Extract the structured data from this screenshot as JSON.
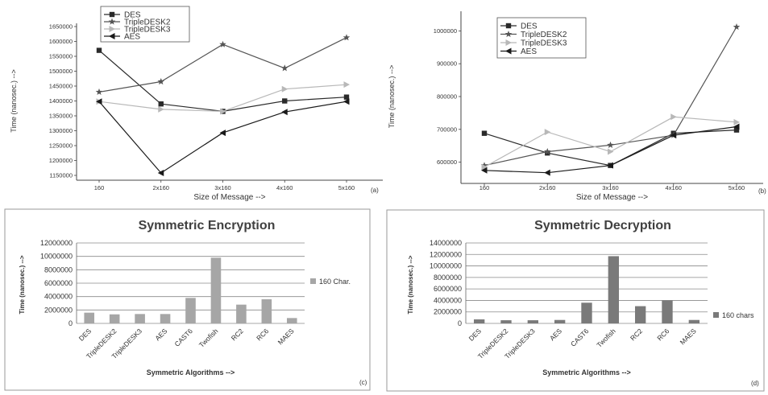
{
  "chart_data": [
    {
      "type": "line",
      "panel_label": "(a)",
      "xlabel": "Size of Message -->",
      "ylabel": "Time (nanosec.) -->",
      "categories": [
        "160",
        "2x160",
        "3x160",
        "4x160",
        "5x160"
      ],
      "ylim": [
        1150000,
        1650000
      ],
      "yticks": [
        "1150000",
        "1200000",
        "1250000",
        "1300000",
        "1350000",
        "1400000",
        "1450000",
        "1500000",
        "1550000",
        "1600000",
        "1650000"
      ],
      "legend_position": "top-center",
      "series": [
        {
          "name": "DES",
          "marker": "square",
          "color": "#2a2a2a",
          "values": [
            1570000,
            1390000,
            1365000,
            1400000,
            1413000
          ]
        },
        {
          "name": "TripleDESK2",
          "marker": "star",
          "color": "#555555",
          "values": [
            1430000,
            1465000,
            1590000,
            1510000,
            1613000
          ]
        },
        {
          "name": "TripleDESK3",
          "marker": "triangle-right",
          "color": "#b8b8b8",
          "values": [
            1398000,
            1372000,
            1365000,
            1440000,
            1455000
          ]
        },
        {
          "name": "AES",
          "marker": "triangle-left",
          "color": "#1a1a1a",
          "values": [
            1398000,
            1158000,
            1293000,
            1363000,
            1398000
          ]
        }
      ]
    },
    {
      "type": "line",
      "panel_label": "(b)",
      "xlabel": "Size of Message -->",
      "ylabel": "Time (nanosec.) -->",
      "categories": [
        "160",
        "2x160",
        "3x160",
        "4x160",
        "5x160"
      ],
      "ylim": [
        550000,
        1050000
      ],
      "yticks": [
        "600000",
        "700000",
        "800000",
        "900000",
        "1000000"
      ],
      "legend_position": "top-center",
      "series": [
        {
          "name": "DES",
          "marker": "square",
          "color": "#2a2a2a",
          "values": [
            688000,
            628000,
            590000,
            688000,
            698000
          ]
        },
        {
          "name": "TripleDESK2",
          "marker": "star",
          "color": "#555555",
          "values": [
            590000,
            632000,
            652000,
            682000,
            1012000
          ]
        },
        {
          "name": "TripleDESK3",
          "marker": "triangle-right",
          "color": "#b8b8b8",
          "values": [
            585000,
            692000,
            632000,
            738000,
            722000
          ]
        },
        {
          "name": "AES",
          "marker": "triangle-left",
          "color": "#1a1a1a",
          "values": [
            575000,
            568000,
            590000,
            682000,
            708000
          ]
        }
      ]
    },
    {
      "type": "bar",
      "panel_label": "(c)",
      "title": "Symmetric Encryption",
      "xlabel": "Symmetric Algorithms -->",
      "ylabel": "Time (nanosec.) -->",
      "categories": [
        "DES",
        "TripleDESK2",
        "TripleDESK3",
        "AES",
        "CAST6",
        "Twofish",
        "RC2",
        "RC6",
        "MAES"
      ],
      "ylim": [
        0,
        12000000
      ],
      "yticks": [
        "0",
        "2000000",
        "4000000",
        "6000000",
        "8000000",
        "10000000",
        "12000000"
      ],
      "legend_position": "right",
      "series": [
        {
          "name": "160 Char.",
          "color": "#a6a6a6",
          "values": [
            1600000,
            1350000,
            1400000,
            1400000,
            3800000,
            9800000,
            2800000,
            3600000,
            800000
          ]
        }
      ]
    },
    {
      "type": "bar",
      "panel_label": "(d)",
      "title": "Symmetric Decryption",
      "xlabel": "Symmetric Algorithms -->",
      "ylabel": "Time (nanosec.) -->",
      "categories": [
        "DES",
        "TripleDESK2",
        "TripleDESK3",
        "AES",
        "CAST6",
        "Twofish",
        "RC2",
        "RC6",
        "MAES"
      ],
      "ylim": [
        0,
        14000000
      ],
      "yticks": [
        "0",
        "2000000",
        "4000000",
        "6000000",
        "8000000",
        "10000000",
        "12000000",
        "14000000"
      ],
      "legend_position": "right",
      "series": [
        {
          "name": "160 chars",
          "color": "#7a7a7a",
          "values": [
            700000,
            550000,
            550000,
            600000,
            3600000,
            11700000,
            3000000,
            4000000,
            600000
          ]
        }
      ]
    }
  ]
}
